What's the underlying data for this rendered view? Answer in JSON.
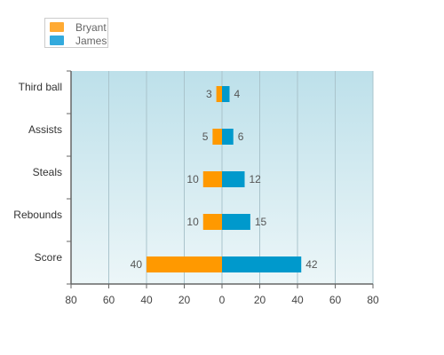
{
  "chart_data": {
    "type": "bar",
    "orientation": "horizontal-butterfly",
    "categories": [
      "Third ball",
      "Assists",
      "Steals",
      "Rebounds",
      "Score"
    ],
    "series": [
      {
        "name": "Bryant",
        "values": [
          3,
          5,
          10,
          10,
          40
        ],
        "color": "#ff9900",
        "side": "left"
      },
      {
        "name": "James",
        "values": [
          4,
          6,
          12,
          15,
          42
        ],
        "color": "#0099cc",
        "side": "right"
      }
    ],
    "x_tick_labels": [
      "80",
      "60",
      "40",
      "20",
      "0",
      "20",
      "40",
      "60",
      "80"
    ],
    "xlim": [
      -80,
      80
    ],
    "legend": {
      "position": "top-left",
      "swatch_colors": [
        "#ffaa33",
        "#33aadd"
      ]
    },
    "plot_background": {
      "top": "#bde0ea",
      "bottom": "#ecf6f8"
    },
    "grid": true,
    "title": "",
    "xlabel": "",
    "ylabel": ""
  }
}
